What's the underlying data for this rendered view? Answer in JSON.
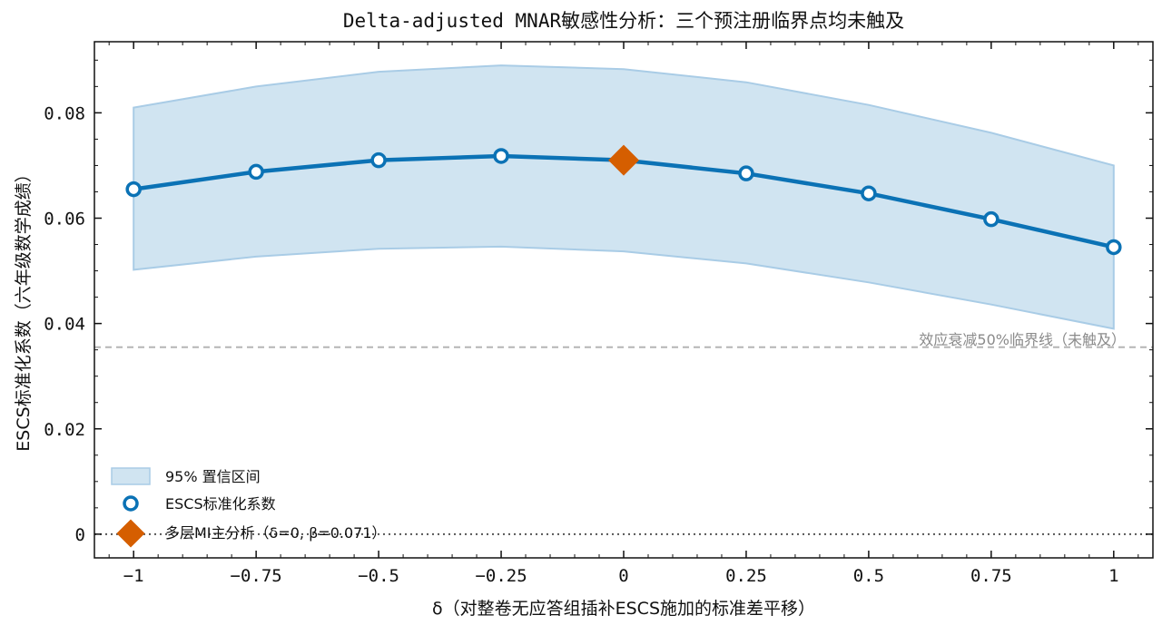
{
  "chart_data": {
    "type": "line",
    "title": "Delta-adjusted MNAR敏感性分析：三个预注册临界点均未触及",
    "xlabel": "δ（对整卷无应答组插补ESCS施加的标准差平移）",
    "ylabel": "ESCS标准化系数（六年级数学成绩）",
    "xlim": [
      -1.08,
      1.08
    ],
    "ylim": [
      -0.0045,
      0.0935
    ],
    "x_ticks": [
      -1,
      -0.75,
      -0.5,
      -0.25,
      0,
      0.25,
      0.5,
      0.75,
      1
    ],
    "x_tick_labels": [
      "−1",
      "−0.75",
      "−0.5",
      "−0.25",
      "0",
      "0.25",
      "0.5",
      "0.75",
      "1"
    ],
    "y_ticks": [
      0,
      0.02,
      0.04,
      0.06,
      0.08
    ],
    "y_tick_labels": [
      "0",
      "0.02",
      "0.04",
      "0.06",
      "0.08"
    ],
    "x": [
      -1,
      -0.75,
      -0.5,
      -0.25,
      0,
      0.25,
      0.5,
      0.75,
      1
    ],
    "series": [
      {
        "name": "ESCS标准化系数",
        "type": "line",
        "x": [
          -1,
          -0.75,
          -0.5,
          -0.25,
          0,
          0.25,
          0.5,
          0.75,
          1
        ],
        "values": [
          0.0655,
          0.0688,
          0.071,
          0.0718,
          0.071,
          0.0685,
          0.0647,
          0.0598,
          0.0545
        ]
      }
    ],
    "ci_band": {
      "name": "95% 置信区间",
      "lower": [
        0.0502,
        0.0527,
        0.0542,
        0.0546,
        0.0537,
        0.0514,
        0.0478,
        0.0436,
        0.039
      ],
      "upper": [
        0.081,
        0.085,
        0.0878,
        0.089,
        0.0883,
        0.0858,
        0.0815,
        0.0762,
        0.07
      ]
    },
    "main_analysis_point": {
      "name": "多层MI主分析（δ=0, β=0.071）",
      "x": 0,
      "y": 0.071
    },
    "reference_lines": [
      {
        "y": 0.0355,
        "style": "dashed",
        "label": "效应衰减50%临界线（未触及）"
      },
      {
        "y": 0,
        "style": "dotted",
        "label": ""
      }
    ],
    "legend": {
      "position": "lower-left"
    },
    "grid": false
  },
  "colors": {
    "line": "#0b72b5",
    "band_fill": "#d0e4f1",
    "band_edge": "#a9cce6",
    "main_point": "#d55e00",
    "half_line": "#b5b5b5",
    "zero_line": "#555555"
  }
}
